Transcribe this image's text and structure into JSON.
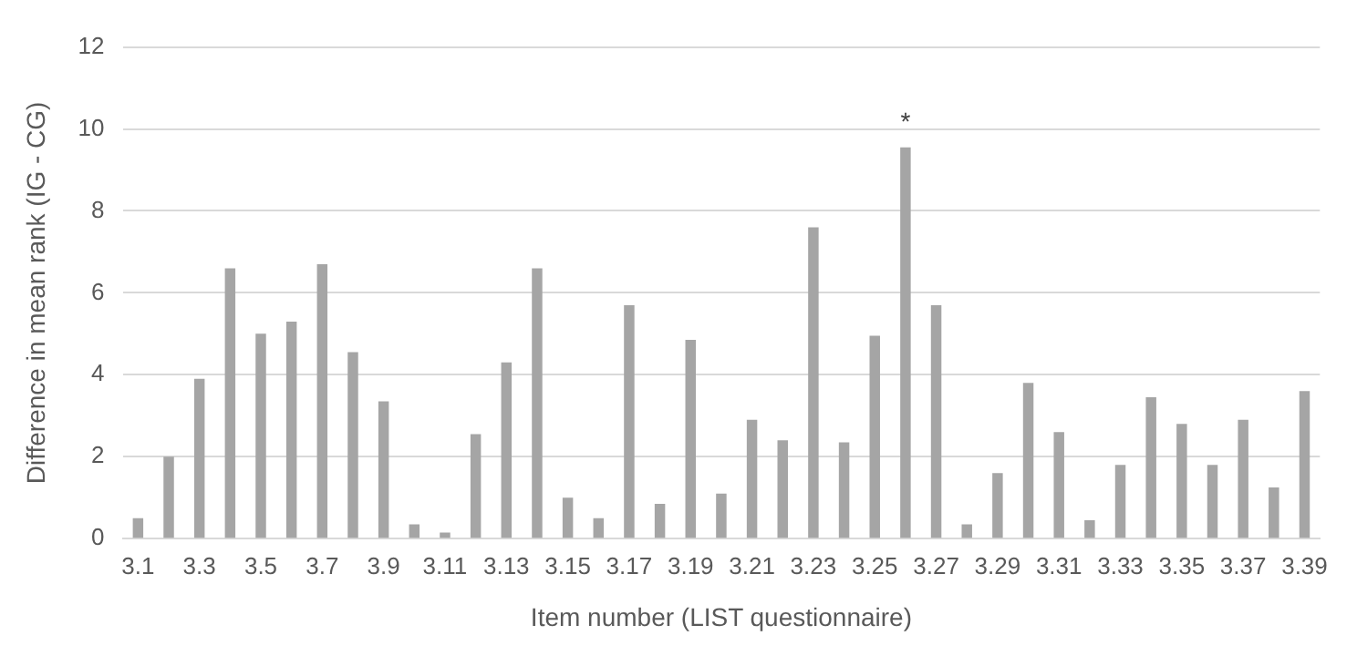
{
  "chart_data": {
    "type": "bar",
    "xlabel": "Item number (LIST questionnaire)",
    "ylabel": "Difference in mean rank (IG - CG)",
    "categories": [
      "3.1",
      null,
      "3.3",
      null,
      "3.5",
      null,
      "3.7",
      null,
      "3.9",
      null,
      "3.11",
      null,
      "3.13",
      null,
      "3.15",
      null,
      "3.17",
      null,
      "3.19",
      null,
      "3.21",
      null,
      "3.23",
      null,
      "3.25",
      null,
      "3.27",
      null,
      "3.29",
      null,
      "3.31",
      null,
      "3.33",
      null,
      "3.35",
      null,
      "3.37",
      null,
      "3.39"
    ],
    "values": [
      0.5,
      2.0,
      3.9,
      6.6,
      5.0,
      5.3,
      6.7,
      4.55,
      3.35,
      0.35,
      0.15,
      2.55,
      4.3,
      6.6,
      1.0,
      0.5,
      5.7,
      0.85,
      4.85,
      1.1,
      2.9,
      2.4,
      7.6,
      2.35,
      4.95,
      9.55,
      5.7,
      0.35,
      1.6,
      3.8,
      2.6,
      0.45,
      1.8,
      3.45,
      2.8,
      1.8,
      2.9,
      1.25,
      3.6
    ],
    "color": "#a5a5a5",
    "ylim": [
      0,
      12
    ],
    "yticks": [
      0,
      2,
      4,
      6,
      8,
      10,
      12
    ],
    "grid": "y",
    "annotations": [
      {
        "text": "*",
        "y": 9.55
      }
    ]
  }
}
